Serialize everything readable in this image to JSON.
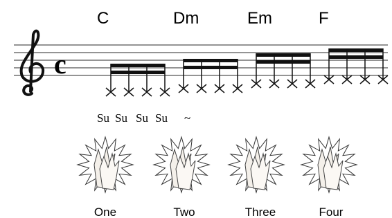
{
  "chords": [
    "C",
    "Dm",
    "Em",
    "F"
  ],
  "lyrics": [
    "Su",
    "Su",
    "Su",
    "Su",
    "~"
  ],
  "counts": [
    "One",
    "Two",
    "Three",
    "Four"
  ]
}
